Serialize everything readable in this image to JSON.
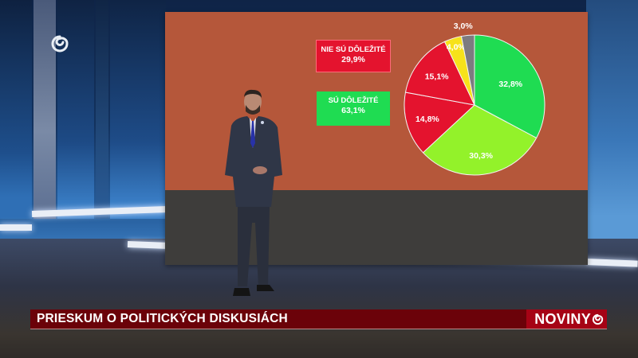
{
  "broadcast": {
    "channel_logo": "swirl-logo",
    "lower_third": {
      "title": "PRIESKUM O POLITICKÝCH DISKUSIÁCH",
      "brand": "NOVINY",
      "brand_icon": "swirl-icon",
      "background_color": "#6b0209",
      "brand_color": "#a60315"
    }
  },
  "screen": {
    "background_color": "#b5573a",
    "legend": [
      {
        "label": "NIE SÚ DÔLEŽITÉ",
        "value": "29,9%",
        "color": "#e4132e"
      },
      {
        "label": "SÚ DÔLEŽITÉ",
        "value": "63,1%",
        "color": "#1fdc52"
      }
    ]
  },
  "chart_data": {
    "type": "pie",
    "title": "",
    "start_angle": "12 o'clock, clockwise",
    "categories": [
      "segment-1",
      "segment-2",
      "segment-3",
      "segment-4",
      "segment-5",
      "segment-6"
    ],
    "values": [
      32.8,
      30.3,
      14.8,
      15.1,
      4.0,
      3.0
    ],
    "labels": [
      "32,8%",
      "30,3%",
      "14,8%",
      "15,1%",
      "4,0%",
      "3,0%"
    ],
    "colors": [
      "#1fdc52",
      "#93f22a",
      "#e4132e",
      "#e4132e",
      "#f7e21a",
      "#7d7b80"
    ],
    "groups": [
      {
        "name": "SÚ DÔLEŽITÉ",
        "total": "63,1%",
        "segments": [
          0,
          1
        ]
      },
      {
        "name": "NIE SÚ DÔLEŽITÉ",
        "total": "29,9%",
        "segments": [
          2,
          3
        ]
      }
    ],
    "legend_position": "left"
  }
}
